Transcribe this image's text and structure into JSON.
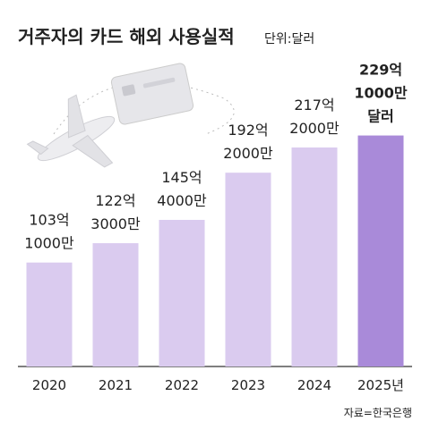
{
  "chart_data": {
    "type": "bar",
    "title": "거주자의 카드 해외 사용실적",
    "subtitle": "단위:달러",
    "categories": [
      "2020",
      "2021",
      "2022",
      "2023",
      "2024",
      "2025년"
    ],
    "values": [
      103.1,
      122.3,
      145.4,
      192.2,
      217.2,
      229.1
    ],
    "value_labels": [
      "103억 1000만",
      "122억 3000만",
      "145억 4000만",
      "192억 2000만",
      "217억 2000만",
      "229억 1000만 달러"
    ],
    "color": "#dacbef",
    "highlight_color": "#a98ad9",
    "highlight_label_color": "#7b54b8",
    "ylim": [
      0,
      250
    ],
    "source": "자료=한국은행"
  }
}
